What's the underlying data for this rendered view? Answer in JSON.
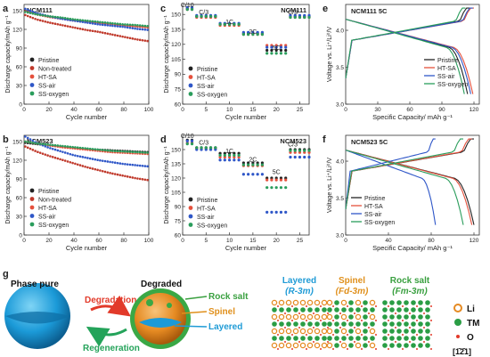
{
  "colors": {
    "pristine": "#222222",
    "nontreated": "#c0392b",
    "htsa": "#e5503c",
    "ssair": "#2f57c8",
    "ssoxygen": "#2a9d5c",
    "green_text": "#3aa040",
    "orange_text": "#e0901c",
    "blue_text": "#1f9bd6",
    "red_arrow": "#e23a2a",
    "green_arrow": "#24a35a"
  },
  "panel_letters": {
    "a": "a",
    "b": "b",
    "c": "c",
    "d": "d",
    "e": "e",
    "f": "f",
    "g": "g"
  },
  "units": {
    "cap_a_y": "Discharge capacity/mAh g⁻¹",
    "cycle_x": "Cycle number",
    "rate_y": "Discharge capacity/mAh g⁻¹",
    "volt_y": "Voltage vs. Li⁺/Li⁰/V",
    "spec_x": "Specific Capacity/ mAh g⁻¹"
  },
  "chart_data": [
    {
      "id": "a",
      "type": "line",
      "title": "NCM111",
      "xlabel": "Cycle number",
      "ylabel": "Discharge capacity/mAh g⁻¹",
      "xlim": [
        0,
        100
      ],
      "ylim": [
        0,
        160
      ],
      "xticks": [
        0,
        20,
        40,
        60,
        80,
        100
      ],
      "yticks": [
        0,
        30,
        60,
        90,
        120,
        150
      ],
      "legend_position": "bottom-left",
      "x": [
        1,
        10,
        20,
        30,
        40,
        50,
        60,
        70,
        80,
        90,
        100
      ],
      "series": [
        {
          "name": "Pristine",
          "color": "pristine",
          "values": [
            150,
            145,
            141,
            138,
            135,
            133,
            131,
            129,
            127,
            125,
            124
          ]
        },
        {
          "name": "Non-treated",
          "color": "nontreated",
          "values": [
            143,
            136,
            131,
            127,
            123,
            119,
            116,
            112,
            108,
            104,
            101
          ]
        },
        {
          "name": "HT-SA",
          "color": "htsa",
          "values": [
            149,
            144,
            140,
            137,
            134,
            132,
            130,
            128,
            126,
            125,
            123
          ]
        },
        {
          "name": "SS-air",
          "color": "ssair",
          "values": [
            153,
            146,
            141,
            137,
            134,
            131,
            128,
            126,
            124,
            121,
            119
          ]
        },
        {
          "name": "SS-oxygen",
          "color": "ssoxygen",
          "values": [
            148,
            144,
            141,
            139,
            136,
            134,
            132,
            130,
            128,
            127,
            125
          ]
        }
      ]
    },
    {
      "id": "b",
      "type": "line",
      "title": "NCM523",
      "xlabel": "Cycle number",
      "ylabel": "Discharge capacity/mAh g⁻¹",
      "xlim": [
        0,
        100
      ],
      "ylim": [
        0,
        160
      ],
      "xticks": [
        0,
        20,
        40,
        60,
        80,
        100
      ],
      "yticks": [
        0,
        30,
        60,
        90,
        120,
        150
      ],
      "legend_position": "bottom-left",
      "x": [
        1,
        10,
        20,
        30,
        40,
        50,
        60,
        70,
        80,
        90,
        100
      ],
      "series": [
        {
          "name": "Pristine",
          "color": "pristine",
          "values": [
            148,
            146,
            144,
            142,
            140,
            138,
            137,
            136,
            135,
            134,
            133
          ]
        },
        {
          "name": "Non-treated",
          "color": "nontreated",
          "values": [
            142,
            134,
            127,
            121,
            115,
            109,
            104,
            99,
            95,
            91,
            88
          ]
        },
        {
          "name": "HT-SA",
          "color": "htsa",
          "values": [
            150,
            147,
            144,
            141,
            139,
            137,
            135,
            133,
            132,
            131,
            130
          ]
        },
        {
          "name": "SS-air",
          "color": "ssair",
          "values": [
            158,
            148,
            140,
            134,
            128,
            124,
            120,
            117,
            114,
            112,
            110
          ]
        },
        {
          "name": "SS-oxygen",
          "color": "ssoxygen",
          "values": [
            150,
            147,
            145,
            143,
            141,
            139,
            137,
            135,
            134,
            133,
            132
          ]
        }
      ]
    },
    {
      "id": "c",
      "type": "scatter",
      "title": "NCM111",
      "xlabel": "Cycle number",
      "ylabel": "Discharge capacity/mAh g⁻¹",
      "xlim": [
        0,
        27
      ],
      "ylim": [
        60,
        160
      ],
      "xticks": [
        0,
        5,
        10,
        15,
        20,
        25
      ],
      "yticks": [
        60,
        75,
        90,
        105,
        120,
        135,
        150
      ],
      "legend_position": "bottom-left",
      "annotations": [
        {
          "text": "C/10",
          "x": 1,
          "y": 160
        },
        {
          "text": "C/3",
          "x": 4.5,
          "y": 153
        },
        {
          "text": "1C",
          "x": 10,
          "y": 143
        },
        {
          "text": "2C",
          "x": 15,
          "y": 133
        },
        {
          "text": "5C",
          "x": 20,
          "y": 117
        },
        {
          "text": "C/3",
          "x": 23.5,
          "y": 153
        }
      ],
      "segments": [
        [
          1,
          2
        ],
        [
          3,
          7
        ],
        [
          8,
          12
        ],
        [
          13,
          17
        ],
        [
          18,
          22
        ],
        [
          23,
          27
        ]
      ],
      "series": [
        {
          "name": "Pristine",
          "color": "pristine",
          "segment_values": [
            156,
            148,
            140,
            131,
            114,
            148
          ]
        },
        {
          "name": "HT-SA",
          "color": "htsa",
          "segment_values": [
            155,
            147,
            139,
            130,
            119,
            147
          ]
        },
        {
          "name": "SS-air",
          "color": "ssair",
          "segment_values": [
            157,
            149,
            141,
            132,
            117,
            149
          ]
        },
        {
          "name": "SS-oxygen",
          "color": "ssoxygen",
          "segment_values": [
            155,
            148,
            140,
            130,
            111,
            147
          ]
        }
      ]
    },
    {
      "id": "d",
      "type": "scatter",
      "title": "NCM523",
      "xlabel": "Cycle number",
      "ylabel": "Discharge capacity/mAh g⁻¹",
      "xlim": [
        0,
        27
      ],
      "ylim": [
        60,
        165
      ],
      "xticks": [
        0,
        5,
        10,
        15,
        20,
        25
      ],
      "yticks": [
        60,
        75,
        90,
        105,
        120,
        135,
        150
      ],
      "legend_position": "bottom-left",
      "annotations": [
        {
          "text": "C/10",
          "x": 1,
          "y": 165
        },
        {
          "text": "C/3",
          "x": 4.5,
          "y": 158
        },
        {
          "text": "1C",
          "x": 10,
          "y": 149
        },
        {
          "text": "2C",
          "x": 15,
          "y": 140
        },
        {
          "text": "5C",
          "x": 20,
          "y": 127
        },
        {
          "text": "C/3",
          "x": 23.5,
          "y": 156
        }
      ],
      "segments": [
        [
          1,
          2
        ],
        [
          3,
          7
        ],
        [
          8,
          12
        ],
        [
          13,
          17
        ],
        [
          18,
          22
        ],
        [
          23,
          27
        ]
      ],
      "series": [
        {
          "name": "Pristine",
          "color": "pristine",
          "segment_values": [
            160,
            152,
            146,
            136,
            120,
            150
          ]
        },
        {
          "name": "HT-SA",
          "color": "htsa",
          "segment_values": [
            157,
            151,
            142,
            133,
            118,
            147
          ]
        },
        {
          "name": "SS-air",
          "color": "ssair",
          "segment_values": [
            159,
            150,
            139,
            124,
            84,
            142
          ]
        },
        {
          "name": "SS-oxygen",
          "color": "ssoxygen",
          "segment_values": [
            156,
            152,
            144,
            134,
            110,
            149
          ]
        }
      ]
    },
    {
      "id": "e",
      "type": "line",
      "title": "NCM111 5C",
      "xlabel": "Specific Capacity/ mAh g⁻¹",
      "ylabel": "Voltage vs. Li⁺/Li⁰/V",
      "xlim": [
        0,
        125
      ],
      "ylim": [
        3.0,
        4.35
      ],
      "xticks": [
        0,
        30,
        60,
        90,
        120
      ],
      "yticks": [
        3.0,
        3.5,
        4.0
      ],
      "legend_position": "right",
      "series": [
        {
          "name": "Pristine",
          "color": "pristine",
          "charge_end": 116,
          "discharge_end": 114
        },
        {
          "name": "HT-SA",
          "color": "htsa",
          "charge_end": 120,
          "discharge_end": 119
        },
        {
          "name": "SS-air",
          "color": "ssair",
          "charge_end": 119,
          "discharge_end": 117
        },
        {
          "name": "SS-oxygen",
          "color": "ssoxygen",
          "charge_end": 112,
          "discharge_end": 111
        }
      ]
    },
    {
      "id": "f",
      "type": "line",
      "title": "NCM523 5C",
      "xlabel": "Specific Capacity/ mAh g⁻¹",
      "ylabel": "Voltage vs. Li⁺/Li⁰/V",
      "xlim": [
        0,
        125
      ],
      "ylim": [
        3.0,
        4.35
      ],
      "xticks": [
        0,
        40,
        80,
        120
      ],
      "yticks": [
        3.0,
        3.5,
        4.0
      ],
      "legend_position": "bottom-left",
      "series": [
        {
          "name": "Pristine",
          "color": "pristine",
          "charge_end": 120,
          "discharge_end": 120
        },
        {
          "name": "HT-SA",
          "color": "htsa",
          "charge_end": 118,
          "discharge_end": 118
        },
        {
          "name": "SS-air",
          "color": "ssair",
          "charge_end": 84,
          "discharge_end": 84
        },
        {
          "name": "SS-oxygen",
          "color": "ssoxygen",
          "charge_end": 110,
          "discharge_end": 110
        }
      ]
    }
  ],
  "panel_g": {
    "phase_pure": "Phase pure",
    "degraded": "Degraded",
    "degradation": "Degradation",
    "regeneration": "Regeneration",
    "rock_salt_label": "Rock salt",
    "spinel_label": "Spinel",
    "layered_label": "Layered",
    "layered_title": "Layered",
    "layered_group": "(R-3m)",
    "spinel_title": "Spinel",
    "spinel_group": "(Fd-3m)",
    "rocksalt_title": "Rock salt",
    "rocksalt_group": "(Fm-3m)",
    "legend_li": "Li",
    "legend_tm": "TM",
    "legend_o": "O",
    "zone_axis": "[1̄2̄1]"
  }
}
